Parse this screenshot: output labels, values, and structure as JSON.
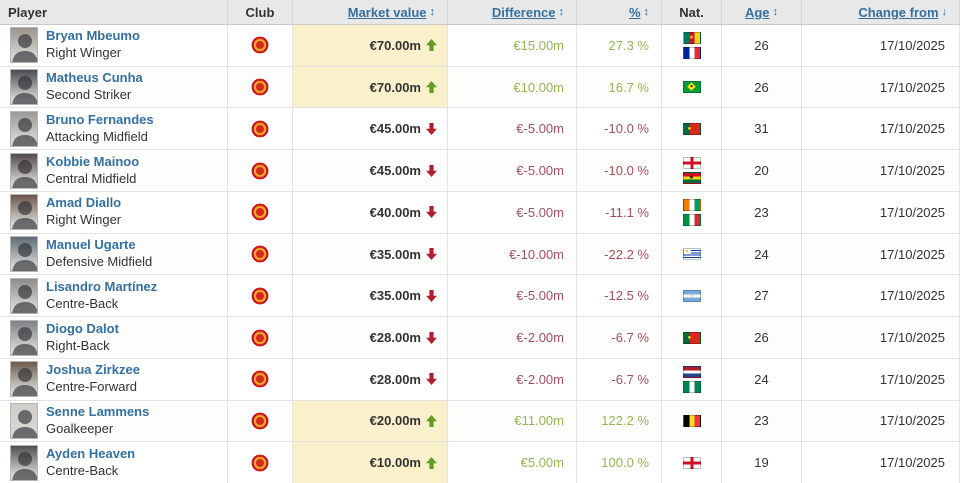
{
  "colors": {
    "link_blue": "#35709e",
    "positive_green": "#94b556",
    "arrow_green": "#5f9c1f",
    "negative_red": "#a1505f",
    "arrow_red": "#b01f2e",
    "market_value_highlight": "#fbf0cc",
    "header_bg": "#e9e8e8",
    "value_text": "#333333"
  },
  "table": {
    "columns": [
      {
        "key": "player",
        "label": "Player",
        "align": "left",
        "sortable": false
      },
      {
        "key": "club",
        "label": "Club",
        "align": "center",
        "sortable": false
      },
      {
        "key": "market_value",
        "label": "Market value",
        "align": "right",
        "sortable": true,
        "sort_icon": "↕"
      },
      {
        "key": "difference",
        "label": "Difference",
        "align": "right",
        "sortable": true,
        "sort_icon": "↕"
      },
      {
        "key": "percent",
        "label": "%",
        "align": "right",
        "sortable": true,
        "sort_icon": "↕"
      },
      {
        "key": "nat",
        "label": "Nat.",
        "align": "center",
        "sortable": false
      },
      {
        "key": "age",
        "label": "Age",
        "align": "center",
        "sortable": true,
        "sort_icon": "↕"
      },
      {
        "key": "change_from",
        "label": "Change from",
        "align": "right",
        "sortable": true,
        "sort_icon": "↓",
        "sorted": "desc"
      }
    ],
    "club_name": "Manchester United",
    "rows": [
      {
        "name": "Bryan Mbeumo",
        "position": "Right Winger",
        "market_value": "€70.00m",
        "trend": "up",
        "difference": "€15.00m",
        "percent": "27.3 %",
        "nationalities": [
          "Cameroon",
          "France"
        ],
        "age": "26",
        "change_from": "17/10/2025",
        "photo_bg": "#9b948e"
      },
      {
        "name": "Matheus Cunha",
        "position": "Second Striker",
        "market_value": "€70.00m",
        "trend": "up",
        "difference": "€10.00m",
        "percent": "16.7 %",
        "nationalities": [
          "Brazil"
        ],
        "age": "26",
        "change_from": "17/10/2025",
        "photo_bg": "#4a4a52"
      },
      {
        "name": "Bruno Fernandes",
        "position": "Attacking Midfield",
        "market_value": "€45.00m",
        "trend": "down",
        "difference": "€-5.00m",
        "percent": "-10.0 %",
        "nationalities": [
          "Portugal"
        ],
        "age": "31",
        "change_from": "17/10/2025",
        "photo_bg": "#9a9a98"
      },
      {
        "name": "Kobbie Mainoo",
        "position": "Central Midfield",
        "market_value": "€45.00m",
        "trend": "down",
        "difference": "€-5.00m",
        "percent": "-10.0 %",
        "nationalities": [
          "England",
          "Ghana"
        ],
        "age": "20",
        "change_from": "17/10/2025",
        "photo_bg": "#55484a"
      },
      {
        "name": "Amad Diallo",
        "position": "Right Winger",
        "market_value": "€40.00m",
        "trend": "down",
        "difference": "€-5.00m",
        "percent": "-11.1 %",
        "nationalities": [
          "Cote d'Ivoire",
          "Italy"
        ],
        "age": "23",
        "change_from": "17/10/2025",
        "photo_bg": "#6b564d"
      },
      {
        "name": "Manuel Ugarte",
        "position": "Defensive Midfield",
        "market_value": "€35.00m",
        "trend": "down",
        "difference": "€-10.00m",
        "percent": "-22.2 %",
        "nationalities": [
          "Uruguay"
        ],
        "age": "24",
        "change_from": "17/10/2025",
        "photo_bg": "#5d6a78"
      },
      {
        "name": "Lisandro Martínez",
        "position": "Centre-Back",
        "market_value": "€35.00m",
        "trend": "down",
        "difference": "€-5.00m",
        "percent": "-12.5 %",
        "nationalities": [
          "Argentina"
        ],
        "age": "27",
        "change_from": "17/10/2025",
        "photo_bg": "#8c8c8a"
      },
      {
        "name": "Diogo Dalot",
        "position": "Right-Back",
        "market_value": "€28.00m",
        "trend": "down",
        "difference": "€-2.00m",
        "percent": "-6.7 %",
        "nationalities": [
          "Portugal"
        ],
        "age": "26",
        "change_from": "17/10/2025",
        "photo_bg": "#7d8288"
      },
      {
        "name": "Joshua Zirkzee",
        "position": "Centre-Forward",
        "market_value": "€28.00m",
        "trend": "down",
        "difference": "€-2.00m",
        "percent": "-6.7 %",
        "nationalities": [
          "Netherlands",
          "Nigeria"
        ],
        "age": "24",
        "change_from": "17/10/2025",
        "photo_bg": "#6e5a50"
      },
      {
        "name": "Senne Lammens",
        "position": "Goalkeeper",
        "market_value": "€20.00m",
        "trend": "up",
        "difference": "€11.00m",
        "percent": "122.2 %",
        "nationalities": [
          "Belgium"
        ],
        "age": "23",
        "change_from": "17/10/2025",
        "photo_bg": "#cfcdc8"
      },
      {
        "name": "Ayden Heaven",
        "position": "Centre-Back",
        "market_value": "€10.00m",
        "trend": "up",
        "difference": "€5.00m",
        "percent": "100.0 %",
        "nationalities": [
          "England"
        ],
        "age": "19",
        "change_from": "17/10/2025",
        "photo_bg": "#4f524e"
      }
    ]
  }
}
